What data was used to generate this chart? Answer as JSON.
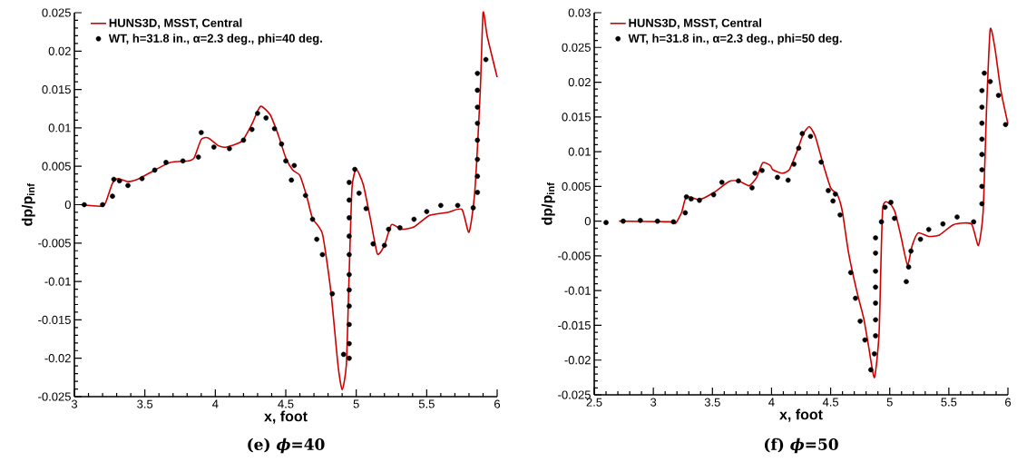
{
  "chart_data": [
    {
      "type": "line",
      "title": "(e) *ϕ*=40",
      "xlabel": "x, foot",
      "ylabel": "dp/p$_{inf}$",
      "xlim": [
        3,
        6
      ],
      "ylim": [
        -0.025,
        0.025
      ],
      "xticks": [
        3,
        3.5,
        4,
        4.5,
        5,
        5.5,
        6
      ],
      "yticks": [
        -0.025,
        -0.02,
        -0.015,
        -0.01,
        -0.005,
        0,
        0.005,
        0.01,
        0.015,
        0.02,
        0.025
      ],
      "legend": "top left",
      "grid": false,
      "series": [
        {
          "name": "HUNS3D, MSST, Central",
          "color": "#d00000",
          "marker": "none",
          "line_style": "solid",
          "x": [
            3.05,
            3.18,
            3.22,
            3.27,
            3.31,
            3.38,
            3.46,
            3.57,
            3.68,
            3.81,
            3.85,
            3.9,
            3.95,
            4.02,
            4.08,
            4.19,
            4.26,
            4.32,
            4.39,
            4.45,
            4.5,
            4.55,
            4.6,
            4.65,
            4.69,
            4.76,
            4.82,
            4.87,
            4.9,
            4.93,
            4.95,
            4.97,
            5.0,
            5.05,
            5.1,
            5.15,
            5.2,
            5.25,
            5.32,
            5.41,
            5.52,
            5.65,
            5.75,
            5.8,
            5.84,
            5.88,
            5.9,
            5.93,
            6.0
          ],
          "values": [
            0,
            -0.0002,
            0.0002,
            0.0028,
            0.0034,
            0.003,
            0.0034,
            0.0045,
            0.0055,
            0.0057,
            0.0061,
            0.0085,
            0.0087,
            0.0077,
            0.0075,
            0.0083,
            0.0105,
            0.0128,
            0.0117,
            0.0089,
            0.0061,
            0.0045,
            0.0038,
            0.001,
            -0.0018,
            -0.0038,
            -0.0113,
            -0.0208,
            -0.0241,
            -0.0208,
            -0.0089,
            0.0022,
            0.0046,
            0.0026,
            -0.0018,
            -0.0064,
            -0.0053,
            -0.0026,
            -0.0032,
            -0.0029,
            -0.0014,
            -0.001,
            -0.0006,
            -0.0036,
            0.0014,
            0.0148,
            0.025,
            0.0219,
            0.0166
          ]
        },
        {
          "name": "WT, h=31.8 in., α=2.3 deg., phi=40 deg.",
          "type": "scatter",
          "color": "#000000",
          "marker": "circle",
          "x": [
            3.07,
            3.2,
            3.27,
            3.28,
            3.32,
            3.38,
            3.48,
            3.57,
            3.65,
            3.77,
            3.88,
            3.9,
            3.99,
            4.1,
            4.2,
            4.26,
            4.3,
            4.36,
            4.42,
            4.47,
            4.5,
            4.54,
            4.56,
            4.64,
            4.69,
            4.72,
            4.76,
            4.83,
            4.91,
            4.95,
            4.95,
            4.95,
            4.95,
            4.95,
            4.95,
            4.95,
            4.95,
            4.95,
            4.95,
            4.95,
            4.99,
            5.02,
            5.07,
            5.12,
            5.2,
            5.23,
            5.31,
            5.41,
            5.5,
            5.6,
            5.72,
            5.83,
            5.86,
            5.86,
            5.86,
            5.86,
            5.86,
            5.86,
            5.86,
            5.86,
            5.92
          ],
          "values": [
            0,
            0,
            0.0011,
            0.0033,
            0.0031,
            0.0025,
            0.0034,
            0.0045,
            0.0055,
            0.0057,
            0.0062,
            0.0094,
            0.0075,
            0.0073,
            0.0084,
            0.0098,
            0.0119,
            0.0113,
            0.0099,
            0.0079,
            0.0057,
            0.0032,
            0.0051,
            0.0012,
            -0.0019,
            -0.0045,
            -0.0065,
            -0.0116,
            -0.0195,
            -0.02,
            -0.0181,
            -0.0156,
            -0.0132,
            -0.0111,
            -0.0091,
            -0.0065,
            -0.0041,
            -0.0017,
            0.0006,
            0.0029,
            0.0046,
            0.0015,
            -0.0005,
            -0.0051,
            -0.0053,
            -0.0032,
            -0.003,
            -0.0019,
            -0.0009,
            -0.0001,
            -0.0001,
            -0.0004,
            0.0016,
            0.0037,
            0.0059,
            0.0084,
            0.0106,
            0.0127,
            0.0149,
            0.0171,
            0.0189
          ]
        }
      ]
    },
    {
      "type": "line",
      "title": "(f) *ϕ*=50",
      "xlabel": "x, foot",
      "ylabel": "dp/p$_{inf}$",
      "xlim": [
        2.5,
        6
      ],
      "ylim": [
        -0.025,
        0.03
      ],
      "xticks": [
        2.5,
        3,
        3.5,
        4,
        4.5,
        5,
        5.5,
        6
      ],
      "yticks": [
        -0.025,
        -0.02,
        -0.015,
        -0.01,
        -0.005,
        0,
        0.005,
        0.01,
        0.015,
        0.02,
        0.025,
        0.03
      ],
      "legend": "top left",
      "grid": false,
      "series": [
        {
          "name": "HUNS3D, MSST, Central",
          "color": "#d00000",
          "marker": "none",
          "line_style": "solid",
          "x": [
            2.71,
            3.14,
            3.19,
            3.24,
            3.28,
            3.39,
            3.51,
            3.64,
            3.72,
            3.81,
            3.875,
            3.925,
            3.99,
            4.01,
            4.09,
            4.15,
            4.21,
            4.27,
            4.32,
            4.37,
            4.435,
            4.5,
            4.56,
            4.6,
            4.65,
            4.72,
            4.78,
            4.82,
            4.87,
            4.91,
            4.94,
            5.0,
            5.045,
            5.095,
            5.15,
            5.19,
            5.24,
            5.33,
            5.42,
            5.54,
            5.69,
            5.75,
            5.79,
            5.82,
            5.85,
            5.89,
            5.94,
            6.0
          ],
          "values": [
            0,
            -0.0001,
            -0.0003,
            0.0013,
            0.0035,
            0.0031,
            0.0041,
            0.0057,
            0.0058,
            0.0051,
            0.0063,
            0.0084,
            0.008,
            0.0074,
            0.0069,
            0.0074,
            0.0098,
            0.0126,
            0.0136,
            0.0122,
            0.0083,
            0.0048,
            0.0037,
            0.0013,
            -0.0044,
            -0.01,
            -0.014,
            -0.0179,
            -0.0225,
            -0.0161,
            0.0017,
            0.0025,
            0.0013,
            -0.0022,
            -0.0063,
            -0.0035,
            -0.0017,
            -0.0022,
            -0.002,
            -0.0005,
            -0.0004,
            -0.0035,
            0.0013,
            0.0166,
            0.0276,
            0.0249,
            0.0188,
            0.014
          ]
        },
        {
          "name": "WT, h=31.8 in., α=2.3 deg., phi=50 deg.",
          "type": "scatter",
          "color": "#000000",
          "marker": "circle",
          "x": [
            2.6,
            2.745,
            2.89,
            3.035,
            3.17,
            3.27,
            3.28,
            3.32,
            3.39,
            3.51,
            3.58,
            3.72,
            3.835,
            3.86,
            3.92,
            4.05,
            4.14,
            4.19,
            4.23,
            4.26,
            4.33,
            4.42,
            4.48,
            4.52,
            4.54,
            4.58,
            4.67,
            4.71,
            4.75,
            4.79,
            4.84,
            4.87,
            4.88,
            4.88,
            4.88,
            4.88,
            4.88,
            4.88,
            4.88,
            4.93,
            4.96,
            5.01,
            5.04,
            5.14,
            5.16,
            5.18,
            5.26,
            5.33,
            5.45,
            5.57,
            5.71,
            5.78,
            5.78,
            5.78,
            5.78,
            5.78,
            5.78,
            5.78,
            5.78,
            5.8,
            5.85,
            5.92,
            5.98
          ],
          "values": [
            -0.0002,
            0,
            0.0001,
            0,
            -0.0001,
            0.0012,
            0.0035,
            0.0032,
            0.003,
            0.0038,
            0.0056,
            0.0058,
            0.0048,
            0.0069,
            0.0073,
            0.0063,
            0.0059,
            0.0082,
            0.0105,
            0.0126,
            0.0122,
            0.0085,
            0.0044,
            0.0029,
            0.0039,
            0.0009,
            -0.0074,
            -0.0111,
            -0.0144,
            -0.0171,
            -0.0214,
            -0.0191,
            -0.0165,
            -0.0142,
            -0.0118,
            -0.0095,
            -0.0072,
            -0.0046,
            -0.0024,
            -0.0001,
            0.002,
            0.0027,
            0.0004,
            -0.0087,
            -0.0066,
            -0.0043,
            -0.0026,
            -0.0012,
            -0.0004,
            0.0006,
            -0.0001,
            0.0025,
            0.005,
            0.0074,
            0.0096,
            0.0118,
            0.0141,
            0.0164,
            0.0188,
            0.0213,
            0.0201,
            0.0181,
            0.0139
          ]
        }
      ]
    }
  ]
}
